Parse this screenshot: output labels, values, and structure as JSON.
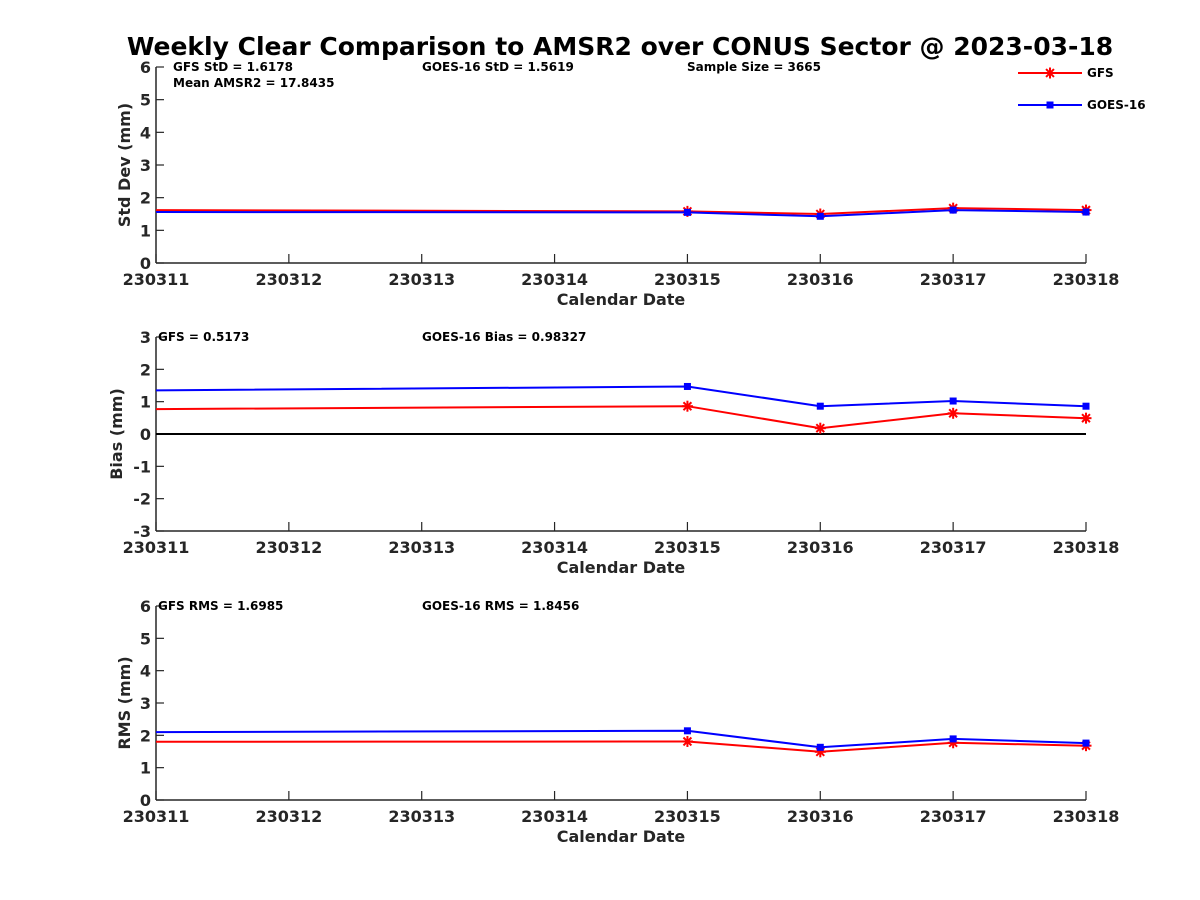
{
  "figure": {
    "title": "Weekly Clear Comparison to AMSR2 over CONUS Sector @ 2023-03-18"
  },
  "legend": {
    "placement": "top-right",
    "entries": [
      {
        "name": "GFS",
        "color": "#ff0000",
        "marker": "asterisk"
      },
      {
        "name": "GOES-16",
        "color": "#0000ff",
        "marker": "square"
      }
    ]
  },
  "colors": {
    "gfs": "#ff0000",
    "goes16": "#0000ff",
    "zero_line": "#000000",
    "axis": "#262626"
  },
  "chart_data": [
    {
      "type": "line",
      "xlabel": "Calendar Date",
      "ylabel": "Std Dev (mm)",
      "categories": [
        "230311",
        "230312",
        "230313",
        "230314",
        "230315",
        "230316",
        "230317",
        "230318"
      ],
      "ylim": [
        0,
        6
      ],
      "yticks": [
        0,
        1,
        2,
        3,
        4,
        5,
        6
      ],
      "grid": false,
      "annotations": [
        "GFS StD = 1.6178",
        "GOES-16 StD = 1.5619",
        "Sample Size = 3665",
        "Mean AMSR2 = 17.8435"
      ],
      "series": [
        {
          "name": "GFS",
          "x": [
            "230311",
            "230315",
            "230316",
            "230317",
            "230318"
          ],
          "values": [
            1.62,
            1.58,
            1.5,
            1.68,
            1.62
          ]
        },
        {
          "name": "GOES-16",
          "x": [
            "230311",
            "230315",
            "230316",
            "230317",
            "230318"
          ],
          "values": [
            1.56,
            1.55,
            1.43,
            1.62,
            1.56
          ]
        }
      ]
    },
    {
      "type": "line",
      "xlabel": "Calendar Date",
      "ylabel": "Bias (mm)",
      "categories": [
        "230311",
        "230312",
        "230313",
        "230314",
        "230315",
        "230316",
        "230317",
        "230318"
      ],
      "ylim": [
        -3,
        3
      ],
      "yticks": [
        -3,
        -2,
        -1,
        0,
        1,
        2,
        3
      ],
      "grid": false,
      "zero_line": true,
      "annotations": [
        "GFS = 0.5173",
        "GOES-16 Bias  = 0.98327"
      ],
      "series": [
        {
          "name": "GFS",
          "x": [
            "230311",
            "230315",
            "230316",
            "230317",
            "230318"
          ],
          "values": [
            0.77,
            0.86,
            0.18,
            0.64,
            0.49
          ]
        },
        {
          "name": "GOES-16",
          "x": [
            "230311",
            "230315",
            "230316",
            "230317",
            "230318"
          ],
          "values": [
            1.35,
            1.47,
            0.86,
            1.02,
            0.86
          ]
        }
      ]
    },
    {
      "type": "line",
      "xlabel": "Calendar Date",
      "ylabel": "RMS (mm)",
      "categories": [
        "230311",
        "230312",
        "230313",
        "230314",
        "230315",
        "230316",
        "230317",
        "230318"
      ],
      "ylim": [
        0,
        6
      ],
      "yticks": [
        0,
        1,
        2,
        3,
        4,
        5,
        6
      ],
      "grid": false,
      "annotations": [
        "GFS RMS = 1.6985",
        "GOES-16 RMS = 1.8456"
      ],
      "series": [
        {
          "name": "GFS",
          "x": [
            "230311",
            "230315",
            "230316",
            "230317",
            "230318"
          ],
          "values": [
            1.8,
            1.81,
            1.49,
            1.77,
            1.68
          ]
        },
        {
          "name": "GOES-16",
          "x": [
            "230311",
            "230315",
            "230316",
            "230317",
            "230318"
          ],
          "values": [
            2.1,
            2.14,
            1.63,
            1.89,
            1.76
          ]
        }
      ]
    }
  ]
}
